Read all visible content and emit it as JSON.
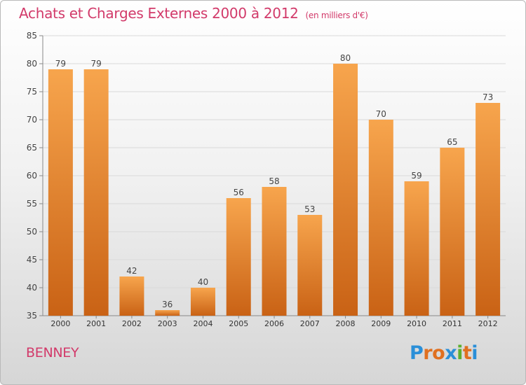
{
  "header": {
    "title": "Achats et Charges Externes 2000 à 2012",
    "unit_note": "(en milliers d'€)"
  },
  "footer": {
    "town": "BENNEY",
    "brand": {
      "text": "Proxiti",
      "colors": [
        "#2a8fd8",
        "#e07020",
        "#e07020",
        "#2a8fd8",
        "#5cb030",
        "#e07020",
        "#2a8fd8"
      ]
    }
  },
  "colors": {
    "accent": "#d23a6a",
    "bar_light": "#f7a54d",
    "bar_dark": "#c96215",
    "grid": "#d9d9d9"
  },
  "chart_data": {
    "type": "bar",
    "title": "Achats et Charges Externes 2000 à 2012",
    "subtitle": "(en milliers d'€)",
    "xlabel": "",
    "ylabel": "",
    "categories": [
      "2000",
      "2001",
      "2002",
      "2003",
      "2004",
      "2005",
      "2006",
      "2007",
      "2008",
      "2009",
      "2010",
      "2011",
      "2012"
    ],
    "values": [
      79,
      79,
      42,
      36,
      40,
      56,
      58,
      53,
      80,
      70,
      59,
      65,
      73
    ],
    "ylim": [
      35,
      85
    ],
    "yticks": [
      35,
      40,
      45,
      50,
      55,
      60,
      65,
      70,
      75,
      80,
      85
    ],
    "grid": true,
    "data_labels": true
  }
}
